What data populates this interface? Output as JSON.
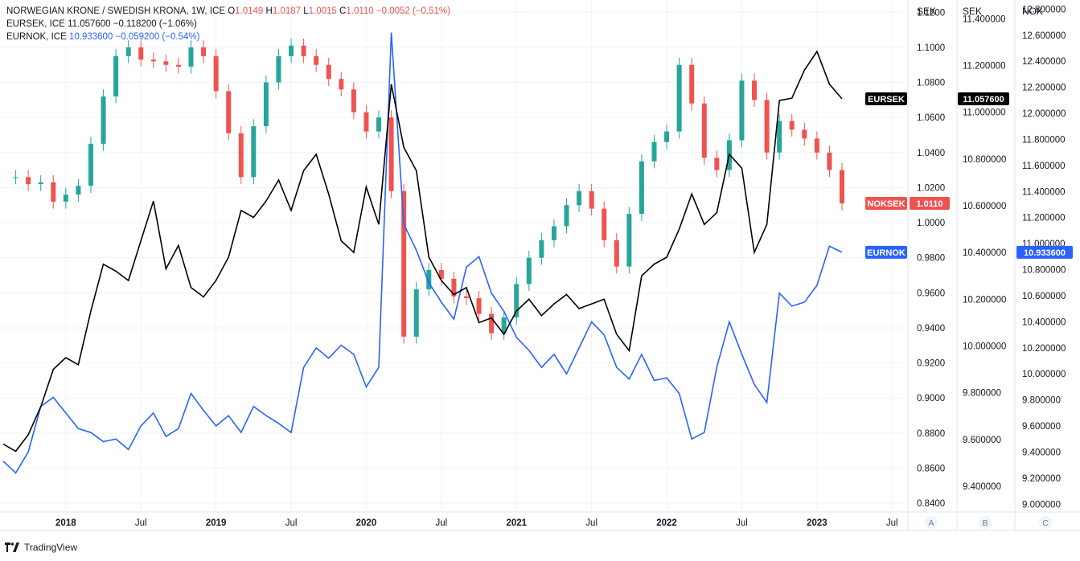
{
  "legend": {
    "main_title": "NORWEGIAN KRONE / SWEDISH KRONA, 1W, ICE",
    "ohlc": {
      "o_label": "O",
      "o": "1.0149",
      "h_label": "H",
      "h": "1.0187",
      "l_label": "L",
      "l": "1.0015",
      "c_label": "C",
      "c": "1.0110",
      "chg": "−0.0052 (−0.51%)"
    },
    "eursek": {
      "name": "EURSEK, ICE",
      "value": "11.057600",
      "chg": "−0.118200 (−1.06%)"
    },
    "eurnok": {
      "name": "EURNOK, ICE",
      "value": "10.933600",
      "chg": "−0.059200 (−0.54%)"
    }
  },
  "axes": {
    "headers": [
      "SEK",
      "SEK",
      "NOK"
    ],
    "scale_buttons": [
      "A",
      "B",
      "C"
    ],
    "a_ticks": [
      "1.1200",
      "1.1000",
      "1.0800",
      "1.0600",
      "1.0400",
      "1.0200",
      "1.0000",
      "0.9800",
      "0.9600",
      "0.9400",
      "0.9200",
      "0.9000",
      "0.8800",
      "0.8600",
      "0.8400"
    ],
    "b_ticks": [
      "11.400000",
      "11.200000",
      "11.000000",
      "10.800000",
      "10.600000",
      "10.400000",
      "10.200000",
      "10.000000",
      "9.800000",
      "9.600000",
      "9.400000"
    ],
    "c_ticks": [
      "12.800000",
      "12.600000",
      "12.400000",
      "12.200000",
      "12.000000",
      "11.800000",
      "11.600000",
      "11.400000",
      "11.200000",
      "11.000000",
      "10.800000",
      "10.600000",
      "10.400000",
      "10.200000",
      "10.000000",
      "9.800000",
      "9.600000",
      "9.400000",
      "9.200000",
      "9.000000"
    ]
  },
  "time_axis": [
    "2018",
    "Jul",
    "2019",
    "Jul",
    "2020",
    "Jul",
    "2021",
    "Jul",
    "2022",
    "Jul",
    "2023",
    "Jul"
  ],
  "labels": {
    "eursek_tag": "EURSEK",
    "eursek_price": "11.057600",
    "noksek_tag": "NOKSEK",
    "noksek_price": "1.0110",
    "eurnok_tag": "EURNOK",
    "eurnok_price": "10.933600"
  },
  "footer": {
    "brand": "TradingView"
  },
  "colors": {
    "up": "#26a69a",
    "down": "#ef5350",
    "eursek": "#000000",
    "eurnok": "#2962ff",
    "grid": "#f0f3fa",
    "text": "#131722"
  },
  "chart_data": {
    "type": "line",
    "title": "NORWEGIAN KRONE / SWEDISH KRONA, 1W, ICE",
    "x_type": "weekly dates",
    "x_range": [
      "2017-08",
      "2023-03"
    ],
    "grid": true,
    "series": [
      {
        "name": "NOKSEK",
        "style": "candlestick",
        "axis": "A",
        "x": [
          "2017-09",
          "2017-10",
          "2017-11",
          "2017-12",
          "2018-01",
          "2018-02",
          "2018-03",
          "2018-04",
          "2018-05",
          "2018-06",
          "2018-07",
          "2018-08",
          "2018-09",
          "2018-10",
          "2018-11",
          "2018-12",
          "2019-01",
          "2019-02",
          "2019-03",
          "2019-04",
          "2019-05",
          "2019-06",
          "2019-07",
          "2019-08",
          "2019-09",
          "2019-10",
          "2019-11",
          "2019-12",
          "2020-01",
          "2020-02",
          "2020-03",
          "2020-04",
          "2020-05",
          "2020-06",
          "2020-07",
          "2020-08",
          "2020-09",
          "2020-10",
          "2020-11",
          "2020-12",
          "2021-01",
          "2021-02",
          "2021-03",
          "2021-04",
          "2021-05",
          "2021-06",
          "2021-07",
          "2021-08",
          "2021-09",
          "2021-10",
          "2021-11",
          "2021-12",
          "2022-01",
          "2022-02",
          "2022-03",
          "2022-04",
          "2022-05",
          "2022-06",
          "2022-07",
          "2022-08",
          "2022-09",
          "2022-10",
          "2022-11",
          "2022-12",
          "2023-01",
          "2023-02",
          "2023-03"
        ],
        "values": [
          1.026,
          1.022,
          1.023,
          1.012,
          1.016,
          1.021,
          1.045,
          1.072,
          1.095,
          1.1,
          1.093,
          1.092,
          1.09,
          1.089,
          1.1,
          1.095,
          1.075,
          1.051,
          1.026,
          1.055,
          1.08,
          1.095,
          1.101,
          1.095,
          1.09,
          1.082,
          1.076,
          1.063,
          1.052,
          1.06,
          1.018,
          0.935,
          0.962,
          0.973,
          0.968,
          0.958,
          0.957,
          0.948,
          0.937,
          0.946,
          0.965,
          0.98,
          0.99,
          0.998,
          1.01,
          1.018,
          1.008,
          0.99,
          0.975,
          1.005,
          1.035,
          1.046,
          1.052,
          1.09,
          1.068,
          1.037,
          1.03,
          1.047,
          1.081,
          1.07,
          1.04,
          1.058,
          1.053,
          1.048,
          1.04,
          1.03,
          1.011
        ],
        "last": 1.011
      },
      {
        "name": "EURSEK",
        "axis": "B",
        "x": [
          "2017-08",
          "2017-09",
          "2017-10",
          "2017-11",
          "2017-12",
          "2018-01",
          "2018-02",
          "2018-03",
          "2018-04",
          "2018-05",
          "2018-06",
          "2018-07",
          "2018-08",
          "2018-09",
          "2018-10",
          "2018-11",
          "2018-12",
          "2019-01",
          "2019-02",
          "2019-03",
          "2019-04",
          "2019-05",
          "2019-06",
          "2019-07",
          "2019-08",
          "2019-09",
          "2019-10",
          "2019-11",
          "2019-12",
          "2020-01",
          "2020-02",
          "2020-03",
          "2020-04",
          "2020-05",
          "2020-06",
          "2020-07",
          "2020-08",
          "2020-09",
          "2020-10",
          "2020-11",
          "2020-12",
          "2021-01",
          "2021-02",
          "2021-03",
          "2021-04",
          "2021-05",
          "2021-06",
          "2021-07",
          "2021-08",
          "2021-09",
          "2021-10",
          "2021-11",
          "2021-12",
          "2022-01",
          "2022-02",
          "2022-03",
          "2022-04",
          "2022-05",
          "2022-06",
          "2022-07",
          "2022-08",
          "2022-09",
          "2022-10",
          "2022-11",
          "2022-12",
          "2023-01",
          "2023-02",
          "2023-03"
        ],
        "values": [
          9.58,
          9.55,
          9.62,
          9.74,
          9.9,
          9.95,
          9.92,
          10.15,
          10.35,
          10.32,
          10.28,
          10.45,
          10.62,
          10.33,
          10.43,
          10.25,
          10.21,
          10.28,
          10.38,
          10.58,
          10.55,
          10.62,
          10.71,
          10.58,
          10.75,
          10.82,
          10.65,
          10.45,
          10.4,
          10.68,
          10.52,
          11.12,
          10.85,
          10.75,
          10.38,
          10.28,
          10.22,
          10.25,
          10.1,
          10.12,
          10.05,
          10.15,
          10.2,
          10.13,
          10.18,
          10.22,
          10.16,
          10.18,
          10.2,
          10.05,
          9.98,
          10.3,
          10.35,
          10.38,
          10.5,
          10.65,
          10.52,
          10.57,
          10.82,
          10.76,
          10.4,
          10.52,
          11.05,
          11.06,
          11.18,
          11.26,
          11.12,
          11.0576
        ],
        "last": 11.0576
      },
      {
        "name": "EURNOK",
        "axis": "C",
        "x": [
          "2017-08",
          "2017-09",
          "2017-10",
          "2017-11",
          "2017-12",
          "2018-01",
          "2018-02",
          "2018-03",
          "2018-04",
          "2018-05",
          "2018-06",
          "2018-07",
          "2018-08",
          "2018-09",
          "2018-10",
          "2018-11",
          "2018-12",
          "2019-01",
          "2019-02",
          "2019-03",
          "2019-04",
          "2019-05",
          "2019-06",
          "2019-07",
          "2019-08",
          "2019-09",
          "2019-10",
          "2019-11",
          "2019-12",
          "2020-01",
          "2020-02",
          "2020-03",
          "2020-04",
          "2020-05",
          "2020-06",
          "2020-07",
          "2020-08",
          "2020-09",
          "2020-10",
          "2020-11",
          "2020-12",
          "2021-01",
          "2021-02",
          "2021-03",
          "2021-04",
          "2021-05",
          "2021-06",
          "2021-07",
          "2021-08",
          "2021-09",
          "2021-10",
          "2021-11",
          "2021-12",
          "2022-01",
          "2022-02",
          "2022-03",
          "2022-04",
          "2022-05",
          "2022-06",
          "2022-07",
          "2022-08",
          "2022-09",
          "2022-10",
          "2022-11",
          "2022-12",
          "2023-01",
          "2023-02",
          "2023-03"
        ],
        "values": [
          9.33,
          9.24,
          9.4,
          9.75,
          9.82,
          9.7,
          9.58,
          9.55,
          9.48,
          9.5,
          9.42,
          9.6,
          9.7,
          9.52,
          9.58,
          9.85,
          9.72,
          9.6,
          9.68,
          9.55,
          9.75,
          9.68,
          9.62,
          9.55,
          10.05,
          10.2,
          10.12,
          10.22,
          10.15,
          9.9,
          10.05,
          12.62,
          11.15,
          10.95,
          10.7,
          10.55,
          10.42,
          10.82,
          10.9,
          10.62,
          10.48,
          10.28,
          10.18,
          10.05,
          10.15,
          10.0,
          10.2,
          10.4,
          10.3,
          10.05,
          9.96,
          10.15,
          9.95,
          9.97,
          9.85,
          9.5,
          9.55,
          10.05,
          10.4,
          10.15,
          9.92,
          9.78,
          10.62,
          10.52,
          10.55,
          10.68,
          10.98,
          10.9336
        ],
        "last": 10.9336
      }
    ],
    "axes": [
      {
        "id": "A",
        "unit": "SEK",
        "ylim": [
          0.835,
          1.127
        ],
        "ticks": [
          1.12,
          1.1,
          1.08,
          1.06,
          1.04,
          1.02,
          1.0,
          0.98,
          0.96,
          0.94,
          0.92,
          0.9,
          0.88,
          0.86,
          0.84
        ]
      },
      {
        "id": "B",
        "unit": "SEK",
        "ylim": [
          9.29,
          11.48
        ],
        "ticks": [
          11.4,
          11.2,
          11.0,
          10.8,
          10.6,
          10.4,
          10.2,
          10.0,
          9.8,
          9.6,
          9.4
        ]
      },
      {
        "id": "C",
        "unit": "NOK",
        "ylim": [
          8.94,
          12.87
        ],
        "ticks": [
          12.8,
          12.6,
          12.4,
          12.2,
          12.0,
          11.8,
          11.6,
          11.4,
          11.2,
          11.0,
          10.8,
          10.6,
          10.4,
          10.2,
          10.0,
          9.8,
          9.6,
          9.4,
          9.2,
          9.0
        ]
      }
    ]
  }
}
